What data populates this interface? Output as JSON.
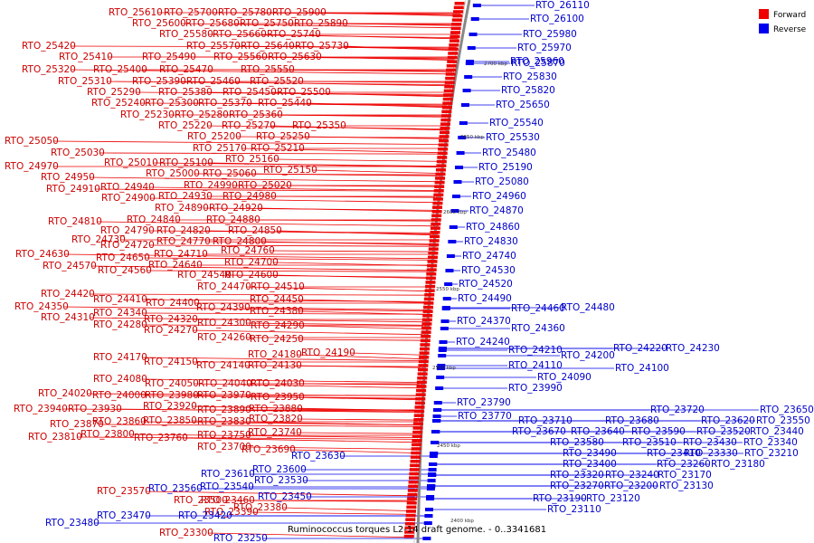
{
  "caption": "Ruminococcus torques L2-14 draft genome. - 0..3341681",
  "colors": {
    "forward": "#ee0000",
    "reverse": "#0000ee",
    "forward_label": "#cc0000",
    "reverse_label": "#0000cc",
    "backbone": "#888888"
  },
  "legend": [
    {
      "label": "Forward",
      "color": "#ee0000"
    },
    {
      "label": "Reverse",
      "color": "#0000ee"
    }
  ],
  "ticks": [
    "2700 kbp",
    "2650 kbp",
    "2600 kbp",
    "2550 kbp",
    "2500 kbp",
    "2450 kbp",
    "2400 kbp"
  ],
  "forward_labels": [
    "RTO_25610",
    "RTO_25700",
    "RTO_25780",
    "RTO_25900",
    "RTO_25600",
    "RTO_25680",
    "RTO_25750",
    "RTO_25890",
    "RTO_25580",
    "RTO_25660",
    "RTO_25740",
    "RTO_25420",
    "RTO_25570",
    "RTO_25640",
    "RTO_25730",
    "RTO_25410",
    "RTO_25490",
    "RTO_25560",
    "RTO_25630",
    "RTO_25320",
    "RTO_25400",
    "RTO_25470",
    "RTO_25550",
    "RTO_25310",
    "RTO_25390",
    "RTO_25460",
    "RTO_25520",
    "RTO_25290",
    "RTO_25380",
    "RTO_25450",
    "RTO_25500",
    "RTO_25240",
    "RTO_25300",
    "RTO_25370",
    "RTO_25440",
    "RTO_25230",
    "RTO_25280",
    "RTO_25360",
    "RTO_25220",
    "RTO_25270",
    "RTO_25350",
    "RTO_25200",
    "RTO_25250",
    "RTO_25050",
    "RTO_25170",
    "RTO_25210",
    "RTO_25030",
    "RTO_25160",
    "RTO_25010",
    "RTO_25100",
    "RTO_24970",
    "RTO_25000",
    "RTO_25060",
    "RTO_25150",
    "RTO_24950",
    "RTO_24990",
    "RTO_25020",
    "RTO_24910",
    "RTO_24940",
    "RTO_24900",
    "RTO_24930",
    "RTO_24980",
    "RTO_24890",
    "RTO_24920",
    "RTO_24810",
    "RTO_24840",
    "RTO_24880",
    "RTO_24790",
    "RTO_24820",
    "RTO_24850",
    "RTO_24730",
    "RTO_24720",
    "RTO_24770",
    "RTO_24800",
    "RTO_24630",
    "RTO_24710",
    "RTO_24760",
    "RTO_24650",
    "RTO_24700",
    "RTO_24570",
    "RTO_24640",
    "RTO_24560",
    "RTO_24540",
    "RTO_24600",
    "RTO_24470",
    "RTO_24510",
    "RTO_24420",
    "RTO_24410",
    "RTO_24450",
    "RTO_24350",
    "RTO_24400",
    "RTO_24340",
    "RTO_24390",
    "RTO_24380",
    "RTO_24310",
    "RTO_24320",
    "RTO_24280",
    "RTO_24300",
    "RTO_24290",
    "RTO_24270",
    "RTO_24260",
    "RTO_24250",
    "RTO_24190",
    "RTO_24170",
    "RTO_24180",
    "RTO_24150",
    "RTO_24140",
    "RTO_24130",
    "RTO_24080",
    "RTO_24050",
    "RTO_24040",
    "RTO_24030",
    "RTO_24020",
    "RTO_24000",
    "RTO_23980",
    "RTO_23970",
    "RTO_23950",
    "RTO_23940",
    "RTO_23930",
    "RTO_23920",
    "RTO_23890",
    "RTO_23880",
    "RTO_23870",
    "RTO_23860",
    "RTO_23850",
    "RTO_23830",
    "RTO_23820",
    "RTO_23810",
    "RTO_23800",
    "RTO_23760",
    "RTO_23750",
    "RTO_23740",
    "RTO_23700",
    "RTO_23690",
    "RTO_23570",
    "RTO_23500",
    "RTO_23460",
    "RTO_23390",
    "RTO_23380",
    "RTO_23300"
  ],
  "reverse_labels": [
    "RTO_26110",
    "RTO_26100",
    "RTO_25980",
    "RTO_25970",
    "RTO_25960",
    "RTO_25870",
    "RTO_25830",
    "RTO_25820",
    "RTO_25650",
    "RTO_25540",
    "RTO_25530",
    "RTO_25480",
    "RTO_25190",
    "RTO_25080",
    "RTO_24960",
    "RTO_24870",
    "RTO_24860",
    "RTO_24830",
    "RTO_24740",
    "RTO_24530",
    "RTO_24520",
    "RTO_24490",
    "RTO_24460",
    "RTO_24480",
    "RTO_24370",
    "RTO_24360",
    "RTO_24240",
    "RTO_24210",
    "RTO_24220",
    "RTO_24230",
    "RTO_24200",
    "RTO_24110",
    "RTO_24100",
    "RTO_24090",
    "RTO_23990",
    "RTO_23790",
    "RTO_23720",
    "RTO_23650",
    "RTO_23770",
    "RTO_23710",
    "RTO_23680",
    "RTO_23620",
    "RTO_23550",
    "RTO_23670",
    "RTO_23640",
    "RTO_23590",
    "RTO_23520",
    "RTO_23440",
    "RTO_23580",
    "RTO_23510",
    "RTO_23430",
    "RTO_23340",
    "RTO_23490",
    "RTO_23410",
    "RTO_23330",
    "RTO_23210",
    "RTO_23630",
    "RTO_23400",
    "RTO_23260",
    "RTO_23180",
    "RTO_23610",
    "RTO_23600",
    "RTO_23320",
    "RTO_23240",
    "RTO_23170",
    "RTO_23530",
    "RTO_23540",
    "RTO_23270",
    "RTO_23200",
    "RTO_23130",
    "RTO_23560",
    "RTO_23450",
    "RTO_23190",
    "RTO_23120",
    "RTO_23420",
    "RTO_23110",
    "RTO_23480",
    "RTO_23470",
    "RTO_23250"
  ]
}
